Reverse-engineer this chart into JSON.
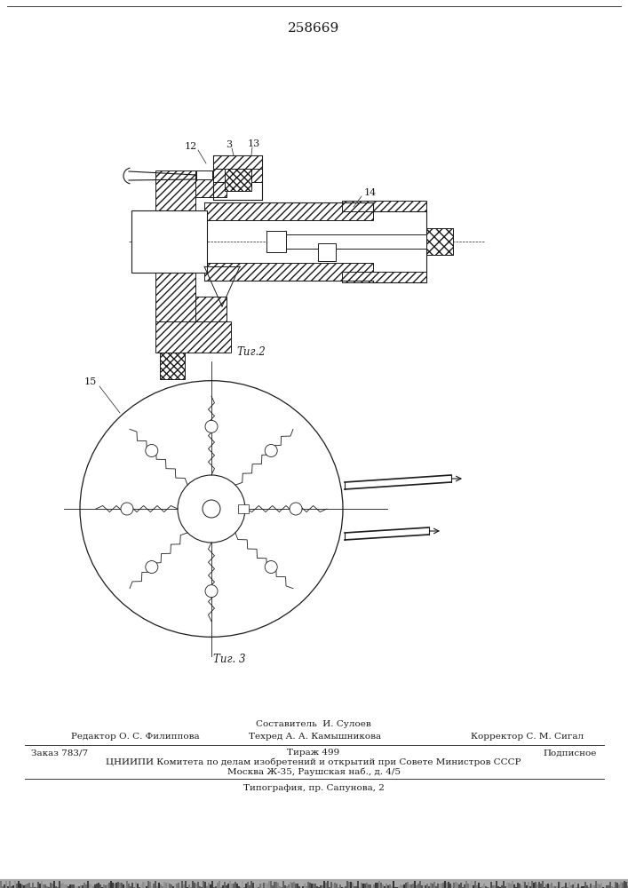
{
  "title": "258669",
  "fig2_label": "Τиг.2",
  "fig3_label": "Τиг. 3",
  "label_12": "12",
  "label_3": "3",
  "label_13": "13",
  "label_14": "14",
  "label_15": "15",
  "bg_color": "#ffffff",
  "lc": "#1a1a1a",
  "footer_sestavitel": "Составитель  И. Сулоев",
  "footer_red": "Редактор О. С. Филиппова",
  "footer_tex": "Техред А. А. Камышникова",
  "footer_kor": "Корректор С. М. Сигал",
  "footer_zakaz": "Заказ 783/7",
  "footer_tirazh": "Тираж 499",
  "footer_podp": "Подписное",
  "footer_cniip": "ЦНИИПИ Комитета по делам изобретений и открытий при Совете Министров СССР",
  "footer_msk": "Москва Ж-35, Раушская наб., д. 4/5",
  "footer_tip": "Типография, пр. Сапунова, 2"
}
